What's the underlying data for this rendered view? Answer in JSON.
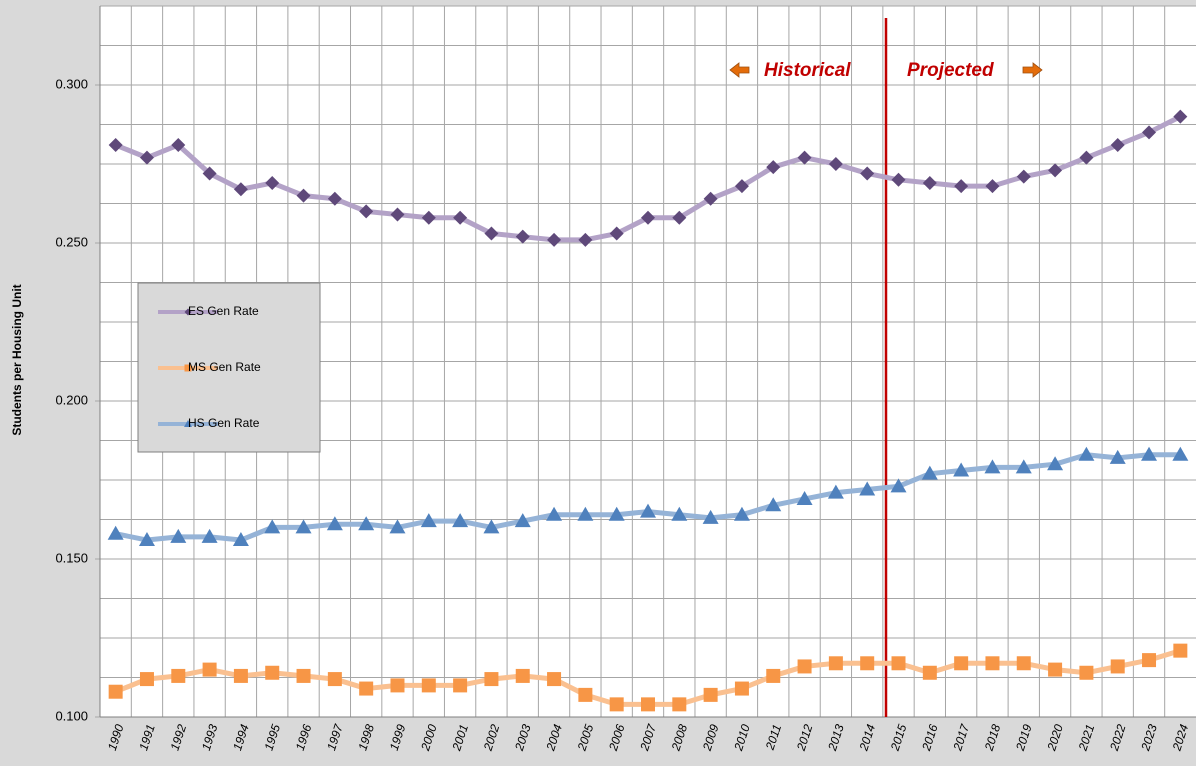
{
  "chart_data": {
    "type": "line",
    "y_label": "Students per Housing Unit",
    "categories": [
      "1990",
      "1991",
      "1992",
      "1993",
      "1994",
      "1995",
      "1996",
      "1997",
      "1998",
      "1999",
      "2000",
      "2001",
      "2002",
      "2003",
      "2004",
      "2005",
      "2006",
      "2007",
      "2008",
      "2009",
      "2010",
      "2011",
      "2012",
      "2013",
      "2014",
      "2015",
      "2016",
      "2017",
      "2018",
      "2019",
      "2020",
      "2021",
      "2022",
      "2023",
      "2024"
    ],
    "series": [
      {
        "name": "ES Gen Rate",
        "color": "#b3a2c7",
        "marker_color": "#5f497a",
        "marker": "diamond",
        "values": [
          0.281,
          0.277,
          0.281,
          0.272,
          0.267,
          0.269,
          0.265,
          0.264,
          0.26,
          0.259,
          0.258,
          0.258,
          0.253,
          0.252,
          0.251,
          0.251,
          0.253,
          0.258,
          0.258,
          0.264,
          0.268,
          0.274,
          0.277,
          0.275,
          0.272,
          0.27,
          0.269,
          0.268,
          0.268,
          0.271,
          0.273,
          0.277,
          0.281,
          0.285,
          0.29
        ]
      },
      {
        "name": "MS Gen Rate",
        "color": "#fac090",
        "marker_color": "#f79646",
        "marker": "square",
        "values": [
          0.108,
          0.112,
          0.113,
          0.115,
          0.113,
          0.114,
          0.113,
          0.112,
          0.109,
          0.11,
          0.11,
          0.11,
          0.112,
          0.113,
          0.112,
          0.107,
          0.104,
          0.104,
          0.104,
          0.107,
          0.109,
          0.113,
          0.116,
          0.117,
          0.117,
          0.117,
          0.114,
          0.117,
          0.117,
          0.117,
          0.115,
          0.114,
          0.116,
          0.118,
          0.121
        ]
      },
      {
        "name": "HS Gen Rate",
        "color": "#95b3d7",
        "marker_color": "#4f81bd",
        "marker": "triangle",
        "values": [
          0.158,
          0.156,
          0.157,
          0.157,
          0.156,
          0.16,
          0.16,
          0.161,
          0.161,
          0.16,
          0.162,
          0.162,
          0.16,
          0.162,
          0.164,
          0.164,
          0.164,
          0.165,
          0.164,
          0.163,
          0.164,
          0.167,
          0.169,
          0.171,
          0.172,
          0.173,
          0.177,
          0.178,
          0.179,
          0.179,
          0.18,
          0.183,
          0.182,
          0.183,
          0.183
        ]
      }
    ],
    "ylim": [
      0.1,
      0.325
    ],
    "yticks": [
      {
        "value": 0.1,
        "label": "0.100"
      },
      {
        "value": 0.15,
        "label": "0.150"
      },
      {
        "value": 0.2,
        "label": "0.200"
      },
      {
        "value": 0.25,
        "label": "0.250"
      },
      {
        "value": 0.3,
        "label": "0.300"
      }
    ],
    "grid": true,
    "annotations": [
      "Historical",
      "Projected"
    ]
  }
}
